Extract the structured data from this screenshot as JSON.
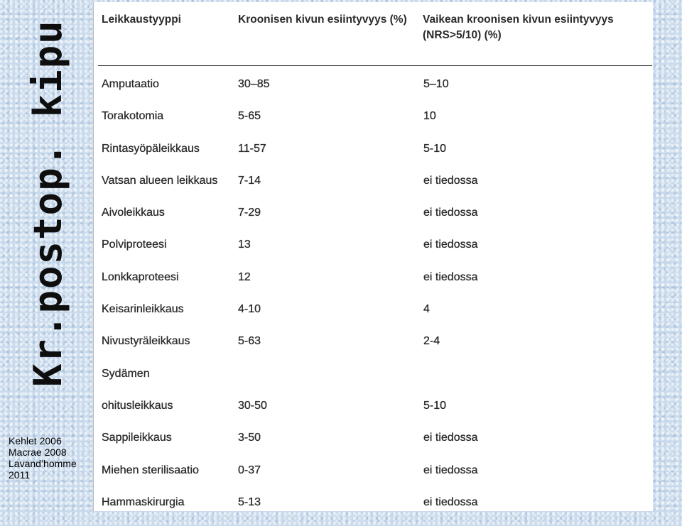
{
  "side_title": "Kr.postop. kipu",
  "references": [
    "Kehlet 2006",
    "Macrae 2008",
    "Lavand’homme",
    "2011"
  ],
  "table": {
    "headers": [
      "Leikkaustyyppi",
      "Kroonisen kivun esiintyvyys (%)",
      "Vaikean kroonisen kivun esiintyvyys (NRS>5/10) (%)"
    ],
    "rows": [
      [
        "Amputaatio",
        "30–85",
        "5–10"
      ],
      [
        "Torakotomia",
        "5-65",
        "10"
      ],
      [
        "Rintasyöpäleikkaus",
        "11-57",
        "5-10"
      ],
      [
        "Vatsan alueen leikkaus",
        "7-14",
        "ei tiedossa"
      ],
      [
        "Aivoleikkaus",
        "7-29",
        "ei tiedossa"
      ],
      [
        "Polviproteesi",
        "13",
        "ei tiedossa"
      ],
      [
        "Lonkkaproteesi",
        "12",
        "ei tiedossa"
      ],
      [
        "Keisarinleikkaus",
        "4-10",
        "4"
      ],
      [
        "Nivustyräleikkaus",
        "5-63",
        "2-4"
      ],
      [
        "Sydämen",
        "",
        ""
      ],
      [
        "ohitusleikkaus",
        "30-50",
        "5-10"
      ],
      [
        "Sappileikkaus",
        "3-50",
        "ei tiedossa"
      ],
      [
        "Miehen sterilisaatio",
        "0-37",
        "ei tiedossa"
      ],
      [
        "Hammaskirurgia",
        "5-13",
        "ei tiedossa"
      ]
    ]
  }
}
